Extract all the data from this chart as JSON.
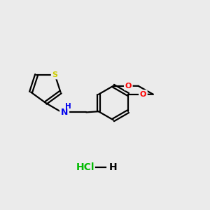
{
  "background_color": "#ebebeb",
  "atom_colors": {
    "S": "#cccc00",
    "N": "#0000ee",
    "O": "#ff0000",
    "C": "#000000",
    "Cl": "#00bb00",
    "H": "#000000"
  },
  "bond_color": "#000000",
  "bond_width": 1.6,
  "figsize": [
    3.0,
    3.0
  ],
  "dpi": 100,
  "hcl_color": "#00bb00"
}
